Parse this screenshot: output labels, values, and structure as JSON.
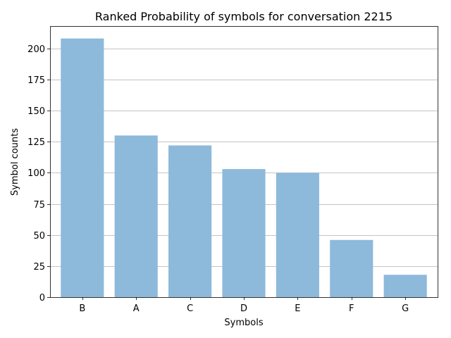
{
  "chart_data": {
    "type": "bar",
    "title": "Ranked Probability of symbols for conversation 2215",
    "xlabel": "Symbols",
    "ylabel": "Symbol counts",
    "categories": [
      "B",
      "A",
      "C",
      "D",
      "E",
      "F",
      "G"
    ],
    "values": [
      208,
      130,
      122,
      103,
      100,
      46,
      18
    ],
    "ylim": [
      0,
      218
    ],
    "yticks": [
      0,
      25,
      50,
      75,
      100,
      125,
      150,
      175,
      200
    ],
    "grid": "y-axis",
    "colors": {
      "bar": "#8db9db",
      "grid": "#b0b0b0",
      "axis": "#000000"
    }
  }
}
